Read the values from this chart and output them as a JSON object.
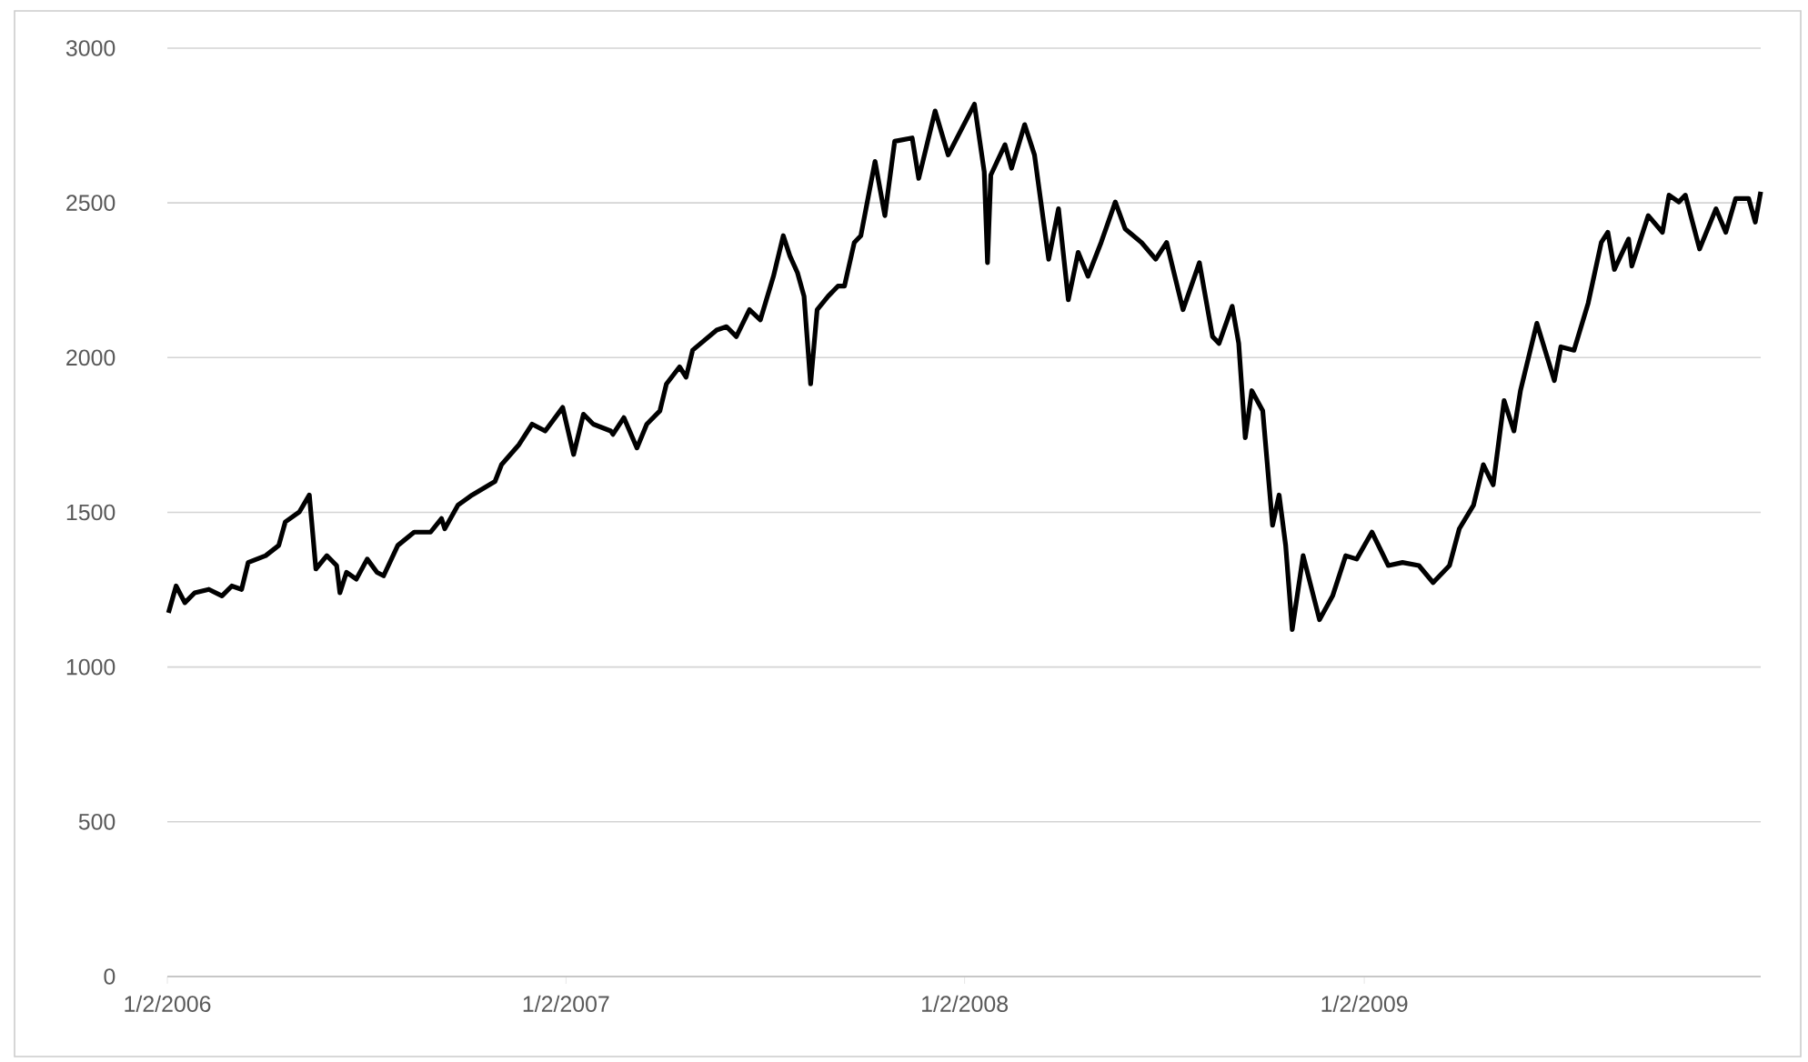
{
  "chart_data": {
    "type": "line",
    "grid": "y",
    "xlim": [
      "2006-01-02",
      "2009-12-31"
    ],
    "xticks": [
      {
        "value": "2006-01-02",
        "label": "1/2/2006"
      },
      {
        "value": "2007-01-02",
        "label": "1/2/2007"
      },
      {
        "value": "2008-01-02",
        "label": "1/2/2008"
      },
      {
        "value": "2009-01-02",
        "label": "1/2/2009"
      }
    ],
    "ylim": [
      0,
      3000
    ],
    "yticks": [
      0,
      500,
      1000,
      1500,
      2000,
      2500,
      3000
    ],
    "x": [
      "2006-01-03",
      "2006-01-10",
      "2006-01-18",
      "2006-01-27",
      "2006-02-09",
      "2006-02-21",
      "2006-03-02",
      "2006-03-11",
      "2006-03-17",
      "2006-04-02",
      "2006-04-14",
      "2006-04-20",
      "2006-05-03",
      "2006-05-12",
      "2006-05-18",
      "2006-05-28",
      "2006-06-06",
      "2006-06-09",
      "2006-06-15",
      "2006-06-24",
      "2006-07-04",
      "2006-07-13",
      "2006-07-19",
      "2006-08-01",
      "2006-08-16",
      "2006-08-31",
      "2006-09-10",
      "2006-09-13",
      "2006-09-25",
      "2006-10-08",
      "2006-10-29",
      "2006-11-04",
      "2006-11-20",
      "2006-12-02",
      "2006-12-14",
      "2006-12-30",
      "2007-01-09",
      "2007-01-18",
      "2007-01-27",
      "2007-02-12",
      "2007-02-14",
      "2007-02-24",
      "2007-03-08",
      "2007-03-17",
      "2007-03-29",
      "2007-04-04",
      "2007-04-16",
      "2007-04-22",
      "2007-04-28",
      "2007-05-20",
      "2007-05-29",
      "2007-06-07",
      "2007-06-19",
      "2007-06-29",
      "2007-07-11",
      "2007-07-20",
      "2007-07-26",
      "2007-08-02",
      "2007-08-08",
      "2007-08-14",
      "2007-08-20",
      "2007-08-30",
      "2007-09-08",
      "2007-09-14",
      "2007-09-23",
      "2007-09-29",
      "2007-10-12",
      "2007-10-21",
      "2007-10-30",
      "2007-11-15",
      "2007-11-21",
      "2007-12-06",
      "2007-12-18",
      "2008-01-11",
      "2008-01-20",
      "2008-01-23",
      "2008-01-26",
      "2008-02-08",
      "2008-02-14",
      "2008-02-26",
      "2008-03-06",
      "2008-03-19",
      "2008-03-28",
      "2008-04-06",
      "2008-04-15",
      "2008-04-24",
      "2008-05-06",
      "2008-05-19",
      "2008-05-28",
      "2008-06-12",
      "2008-06-25",
      "2008-07-05",
      "2008-07-11",
      "2008-07-20",
      "2008-08-04",
      "2008-08-16",
      "2008-08-22",
      "2008-09-03",
      "2008-09-09",
      "2008-09-15",
      "2008-09-21",
      "2008-10-01",
      "2008-10-10",
      "2008-10-16",
      "2008-10-22",
      "2008-10-28",
      "2008-11-07",
      "2008-11-22",
      "2008-12-04",
      "2008-12-16",
      "2008-12-26",
      "2009-01-09",
      "2009-01-24",
      "2009-02-06",
      "2009-02-21",
      "2009-03-06",
      "2009-03-21",
      "2009-03-30",
      "2009-04-12",
      "2009-04-21",
      "2009-04-30",
      "2009-05-10",
      "2009-05-19",
      "2009-05-25",
      "2009-06-09",
      "2009-06-25",
      "2009-07-01",
      "2009-07-13",
      "2009-07-26",
      "2009-08-07",
      "2009-08-13",
      "2009-08-19",
      "2009-09-01",
      "2009-09-04",
      "2009-09-19",
      "2009-10-02",
      "2009-10-08",
      "2009-10-17",
      "2009-10-23",
      "2009-11-05",
      "2009-11-20",
      "2009-11-29",
      "2009-12-08",
      "2009-12-20",
      "2009-12-26",
      "2009-12-31"
    ],
    "series": [
      {
        "color": "#000000",
        "values": [
          1175,
          1262,
          1208,
          1240,
          1251,
          1230,
          1262,
          1251,
          1338,
          1360,
          1393,
          1469,
          1502,
          1556,
          1317,
          1360,
          1328,
          1240,
          1306,
          1284,
          1349,
          1306,
          1295,
          1393,
          1436,
          1436,
          1480,
          1447,
          1523,
          1556,
          1600,
          1654,
          1719,
          1785,
          1763,
          1839,
          1687,
          1817,
          1785,
          1763,
          1752,
          1806,
          1708,
          1785,
          1828,
          1915,
          1970,
          1937,
          2024,
          2089,
          2100,
          2068,
          2155,
          2122,
          2263,
          2394,
          2329,
          2274,
          2198,
          1915,
          2155,
          2198,
          2231,
          2231,
          2372,
          2394,
          2634,
          2459,
          2699,
          2710,
          2579,
          2797,
          2655,
          2819,
          2601,
          2307,
          2590,
          2688,
          2612,
          2753,
          2655,
          2318,
          2481,
          2187,
          2340,
          2263,
          2372,
          2503,
          2416,
          2372,
          2318,
          2372,
          2285,
          2155,
          2307,
          2068,
          2046,
          2166,
          2046,
          1741,
          1893,
          1828,
          1458,
          1556,
          1393,
          1121,
          1360,
          1153,
          1230,
          1360,
          1349,
          1436,
          1328,
          1338,
          1328,
          1273,
          1328,
          1447,
          1523,
          1654,
          1589,
          1861,
          1763,
          1893,
          2111,
          1926,
          2035,
          2024,
          2176,
          2372,
          2405,
          2285,
          2383,
          2296,
          2459,
          2405,
          2525,
          2503,
          2525,
          2351,
          2481,
          2405,
          2514,
          2514,
          2438,
          2536
        ]
      }
    ]
  }
}
